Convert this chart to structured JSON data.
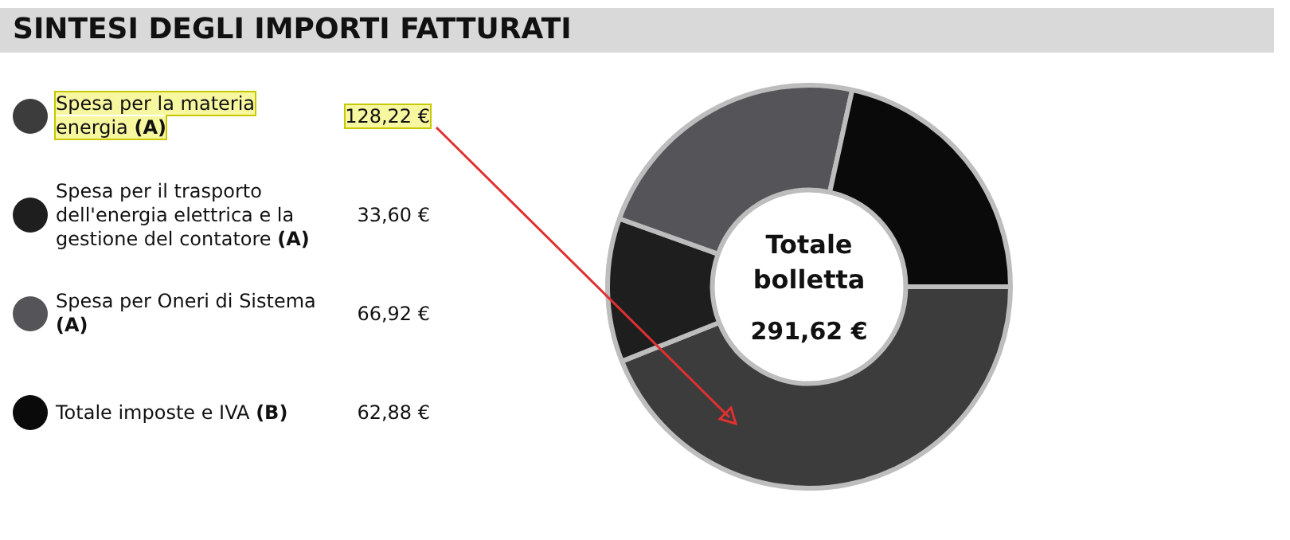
{
  "chart_data": {
    "type": "donut",
    "title": "SINTESI DEGLI IMPORTI FATTURATI",
    "categories": [
      "Spesa per la materia energia (A)",
      "Spesa per il trasporto dell'energia elettrica e la gestione del contatore (A)",
      "Spesa per Oneri di Sistema (A)",
      "Totale imposte e IVA (B)"
    ],
    "values": [
      128.22,
      33.6,
      66.92,
      62.88
    ],
    "value_labels": [
      "128,22 €",
      "33,60 €",
      "66,92 €",
      "62,88 €"
    ],
    "colors": [
      "#3c3c3c",
      "#1e1e1e",
      "#555559",
      "#0a0a0a"
    ],
    "legend": "left",
    "annotations": [
      "Totale bolletta",
      "291,62 €"
    ]
  }
}
